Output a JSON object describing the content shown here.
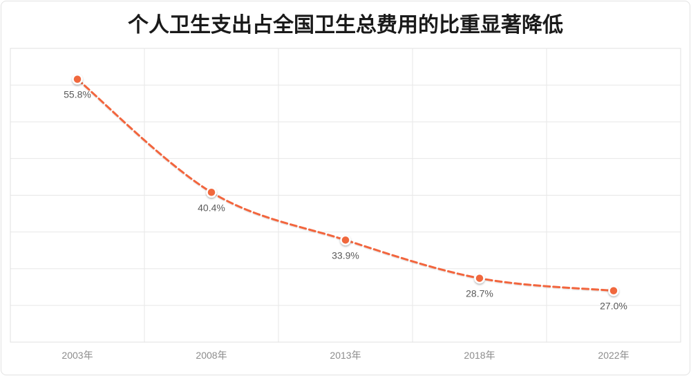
{
  "title": "个人卫生支出占全国卫生总费用的比重显著降低",
  "chart_data": {
    "type": "line",
    "title": "个人卫生支出占全国卫生总费用的比重显著降低",
    "categories": [
      "2003年",
      "2008年",
      "2013年",
      "2018年",
      "2022年"
    ],
    "values": [
      55.8,
      40.4,
      33.9,
      28.7,
      27.0
    ],
    "data_labels": [
      "55.8%",
      "40.4%",
      "33.9%",
      "28.7%",
      "27.0%"
    ],
    "xlabel": "",
    "ylabel": "",
    "ylim": [
      20,
      60
    ],
    "grid_step": 5,
    "grid": "on",
    "legend": "none",
    "line_style": "dashed",
    "colors": {
      "line": "#f2653d",
      "marker": "#f0673e",
      "marker_ring": "#ffffff",
      "data_label": "#595959",
      "axis_label": "#8c8c8c",
      "grid": "#e7e7e7",
      "plot_border": "#e0e0e0",
      "frame_border": "#e2e2e2",
      "background": "#ffffff",
      "title": "#1a1a1a"
    }
  }
}
